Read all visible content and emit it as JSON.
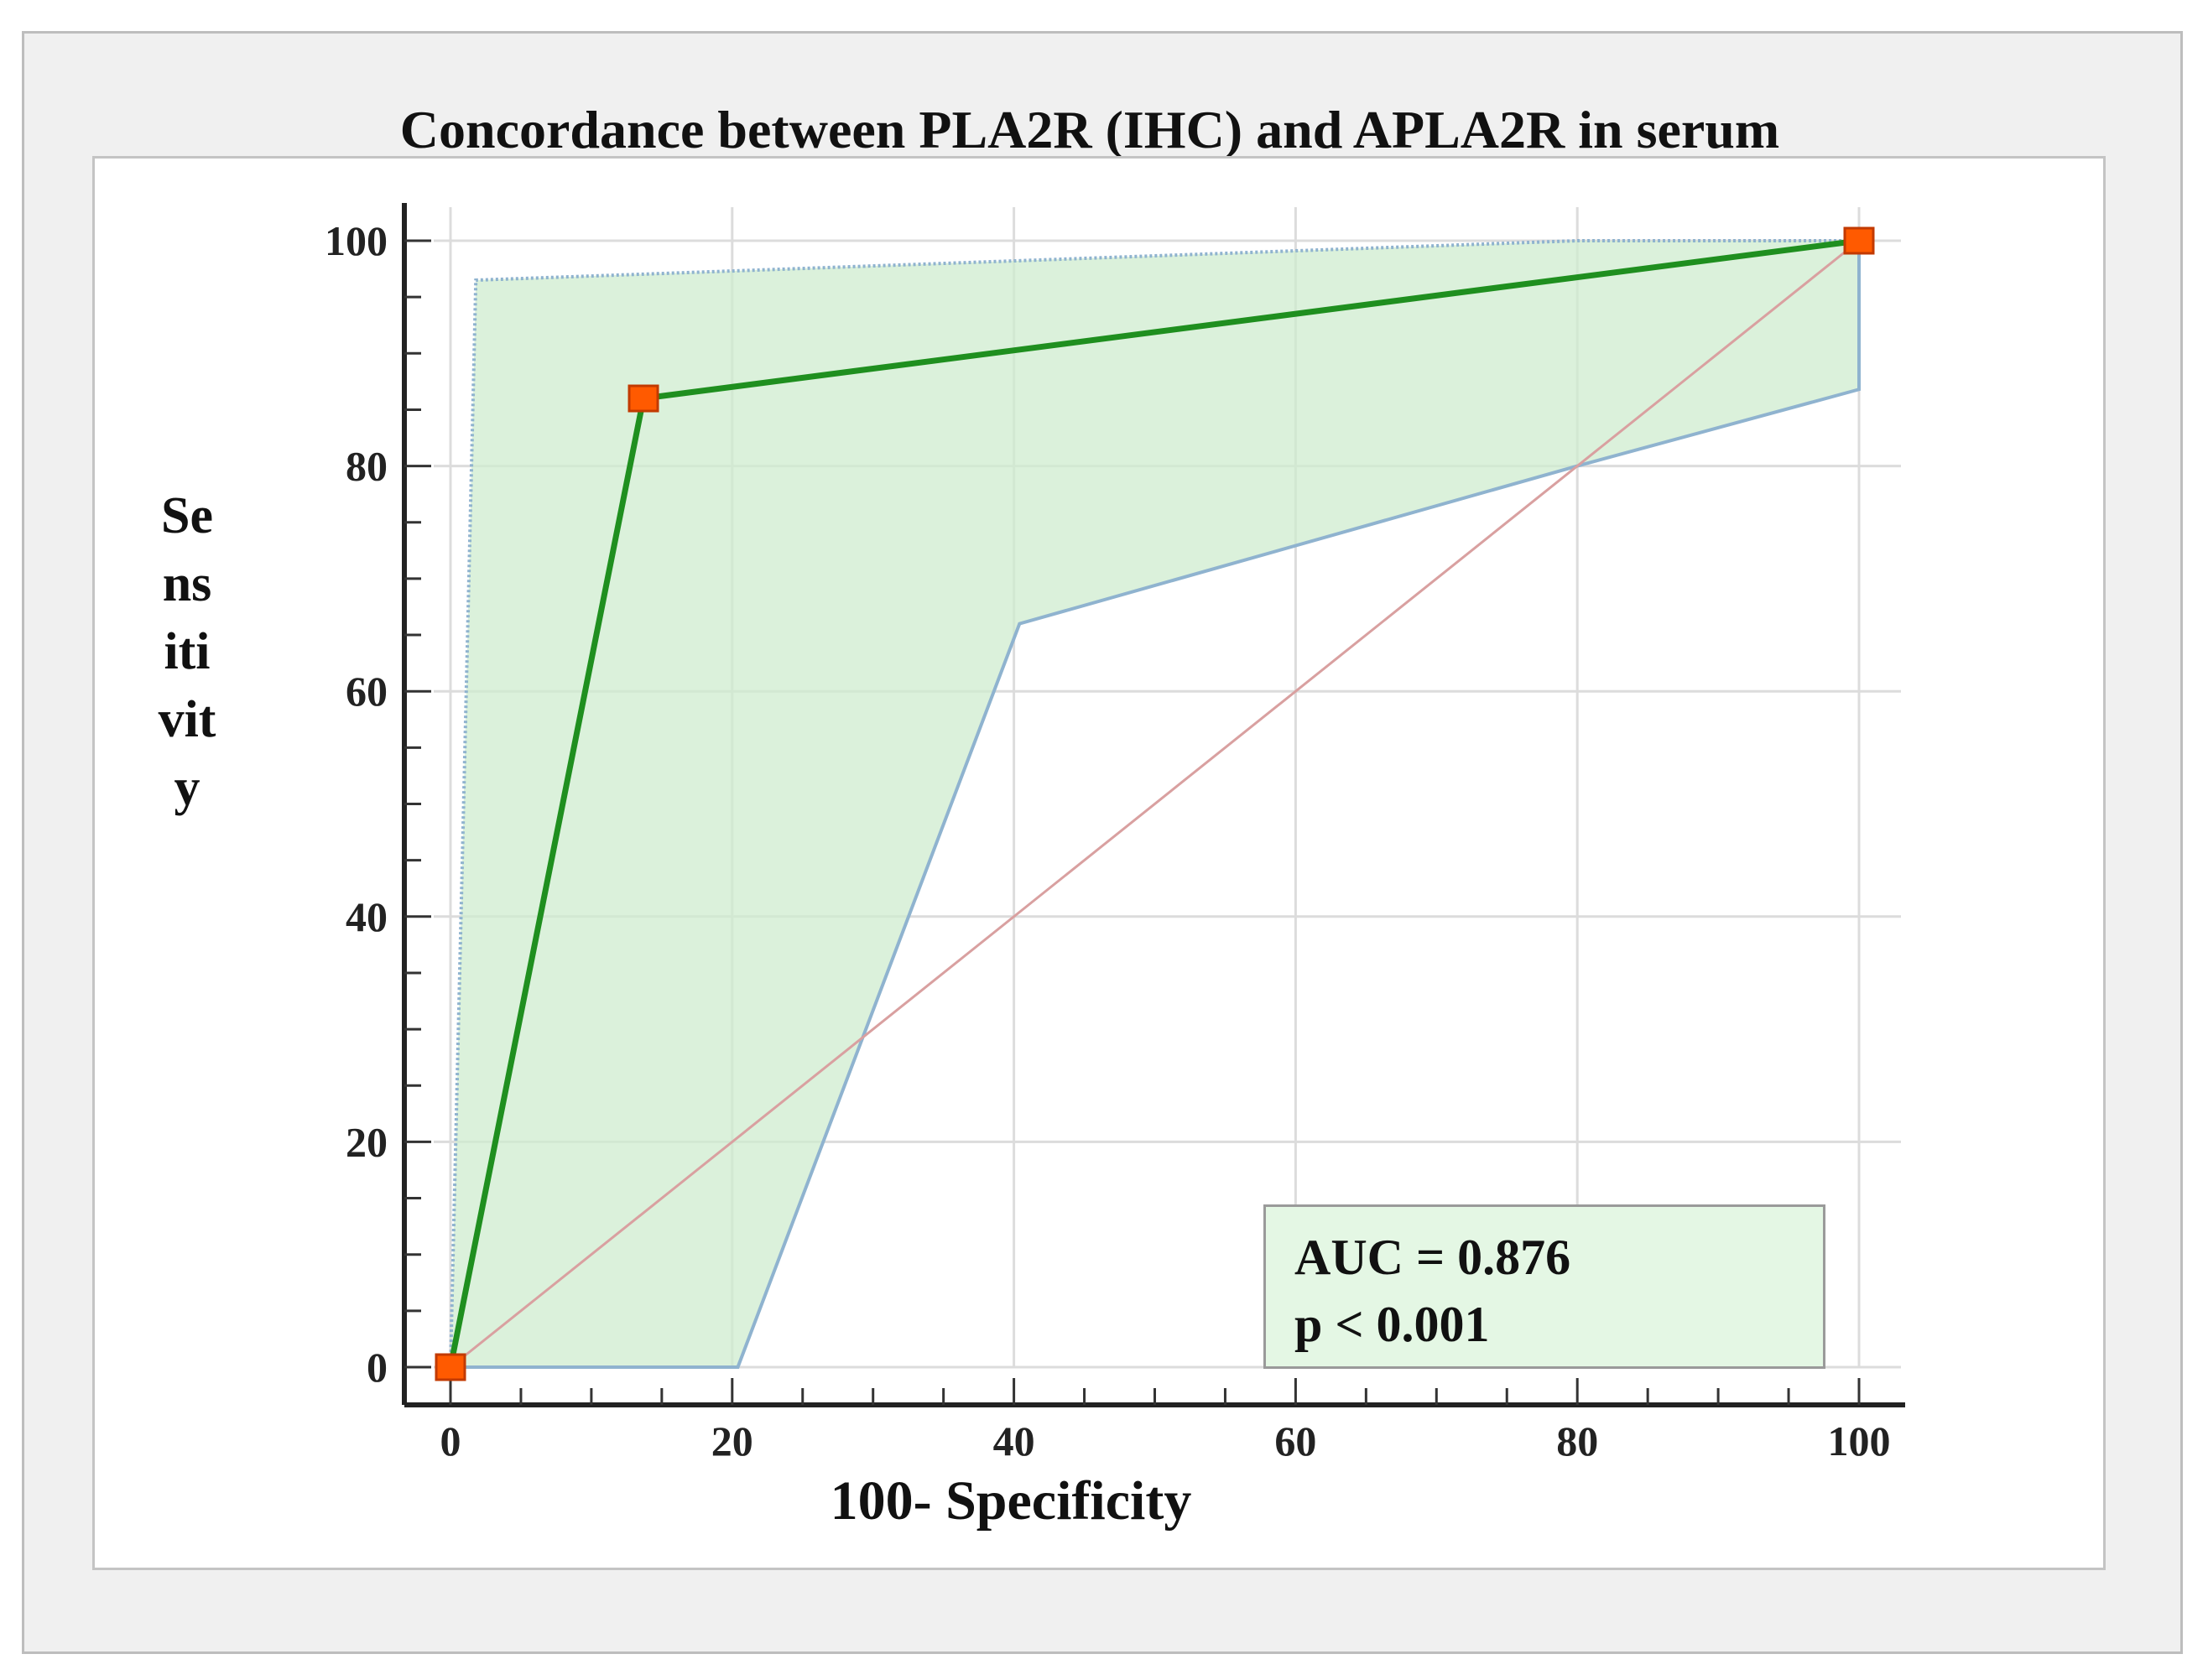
{
  "chart_data": {
    "type": "line",
    "title": "Concordance between PLA2R (IHC) and APLA2R in serum",
    "xlabel": "100- Specificity",
    "ylabel": "Sensitivity",
    "xlim": [
      0,
      100
    ],
    "ylim": [
      0,
      100
    ],
    "x_ticks": [
      "0",
      "20",
      "40",
      "60",
      "80",
      "100"
    ],
    "y_ticks": [
      "0",
      "20",
      "40",
      "60",
      "80",
      "100"
    ],
    "grid": true,
    "series": [
      {
        "role": "roc",
        "color": "#1f8f1f",
        "marker_color": "#ff5a00",
        "x": [
          0,
          13.7,
          100
        ],
        "y": [
          0,
          86,
          100
        ]
      },
      {
        "role": "reference",
        "color": "#d9a0a0",
        "x": [
          0,
          100
        ],
        "y": [
          0,
          100
        ]
      }
    ],
    "confidence_band": {
      "color": "#cfeccf",
      "upper": {
        "x": [
          0,
          0,
          1.8,
          80,
          100
        ],
        "y": [
          0,
          0,
          96.5,
          100,
          100
        ]
      },
      "lower": {
        "x": [
          0,
          20.4,
          40.4,
          80,
          100,
          100
        ],
        "y": [
          0,
          0,
          66,
          80,
          86.8,
          100
        ]
      }
    },
    "annotations": [
      "AUC = 0.876",
      "p < 0.001"
    ]
  }
}
